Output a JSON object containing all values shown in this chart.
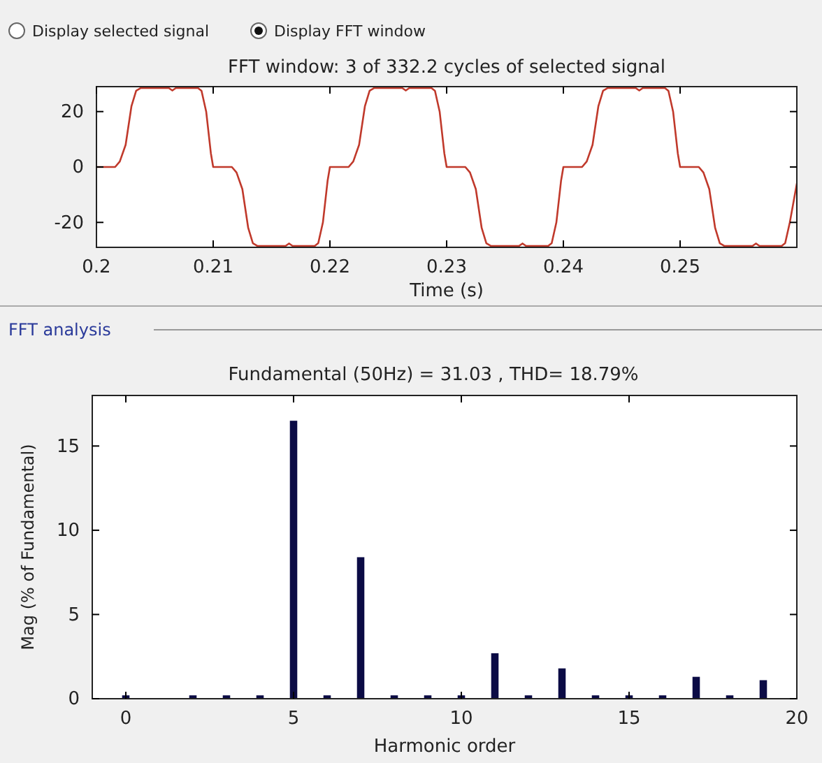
{
  "chart_data": [
    {
      "type": "line",
      "title": "FFT window: 3 of 332.2 cycles of selected signal",
      "xlabel": "Time (s)",
      "annotations": [
        "Display selected signal",
        "Display FFT window"
      ],
      "xlim": [
        0.2,
        0.26
      ],
      "xticks": [
        0.2,
        0.21,
        0.22,
        0.23,
        0.24,
        0.25
      ],
      "ylim": [
        -29,
        29
      ],
      "yticks": [
        -20,
        0,
        20
      ],
      "series": [
        {
          "color": "#c0392b",
          "x": [
            0.2,
            0.2016,
            0.202,
            0.2025,
            0.203,
            0.2034,
            0.2038,
            0.2062,
            0.2065,
            0.2068,
            0.2087,
            0.209,
            0.2094,
            0.2098,
            0.21,
            0.2116,
            0.212,
            0.2125,
            0.213,
            0.2134,
            0.2138,
            0.2162,
            0.2165,
            0.2168,
            0.2187,
            0.219,
            0.2194,
            0.2198,
            0.22,
            0.2216,
            0.222,
            0.2225,
            0.223,
            0.2234,
            0.2238,
            0.2262,
            0.2265,
            0.2268,
            0.2287,
            0.229,
            0.2294,
            0.2298,
            0.23,
            0.2316,
            0.232,
            0.2325,
            0.233,
            0.2334,
            0.2338,
            0.2362,
            0.2365,
            0.2368,
            0.2387,
            0.239,
            0.2394,
            0.2398,
            0.24,
            0.2416,
            0.242,
            0.2425,
            0.243,
            0.2434,
            0.2438,
            0.2462,
            0.2465,
            0.2468,
            0.2487,
            0.249,
            0.2494,
            0.2498,
            0.25,
            0.2516,
            0.252,
            0.2525,
            0.253,
            0.2534,
            0.2538,
            0.2562,
            0.2565,
            0.2568,
            0.2587,
            0.259,
            0.2594,
            0.26
          ],
          "values": [
            0,
            0,
            2,
            8,
            22,
            27.5,
            28.5,
            28.5,
            27.6,
            28.5,
            28.5,
            27.5,
            20,
            5,
            0,
            0,
            -2,
            -8,
            -22,
            -27.5,
            -28.5,
            -28.5,
            -27.6,
            -28.5,
            -28.5,
            -27.5,
            -20,
            -5,
            0,
            0,
            2,
            8,
            22,
            27.5,
            28.5,
            28.5,
            27.6,
            28.5,
            28.5,
            27.5,
            20,
            5,
            0,
            0,
            -2,
            -8,
            -22,
            -27.5,
            -28.5,
            -28.5,
            -27.6,
            -28.5,
            -28.5,
            -27.5,
            -20,
            -5,
            0,
            0,
            2,
            8,
            22,
            27.5,
            28.5,
            28.5,
            27.6,
            28.5,
            28.5,
            27.5,
            20,
            5,
            0,
            0,
            -2,
            -8,
            -22,
            -27.5,
            -28.5,
            -28.5,
            -27.6,
            -28.5,
            -28.5,
            -27.5,
            -20,
            -6
          ]
        }
      ]
    },
    {
      "type": "bar",
      "title": "Fundamental (50Hz) = 31.03 , THD= 18.79%",
      "xlabel": "Harmonic order",
      "ylabel": "Mag (% of Fundamental)",
      "annotations": [
        "FFT analysis"
      ],
      "xlim": [
        -1,
        20
      ],
      "xticks": [
        0,
        5,
        10,
        15,
        20
      ],
      "ylim": [
        0,
        18
      ],
      "yticks": [
        0,
        5,
        10,
        15
      ],
      "series": [
        {
          "color": "#0b0b45",
          "x": [
            0,
            1,
            2,
            3,
            4,
            5,
            6,
            7,
            8,
            9,
            10,
            11,
            12,
            13,
            14,
            15,
            16,
            17,
            18,
            19
          ],
          "values": [
            0.2,
            null,
            0.2,
            0.2,
            0.2,
            16.5,
            0.2,
            8.4,
            0.2,
            0.2,
            0.2,
            2.7,
            0.2,
            1.8,
            0.2,
            0.2,
            0.2,
            1.3,
            0.2,
            1.1
          ]
        }
      ]
    }
  ]
}
